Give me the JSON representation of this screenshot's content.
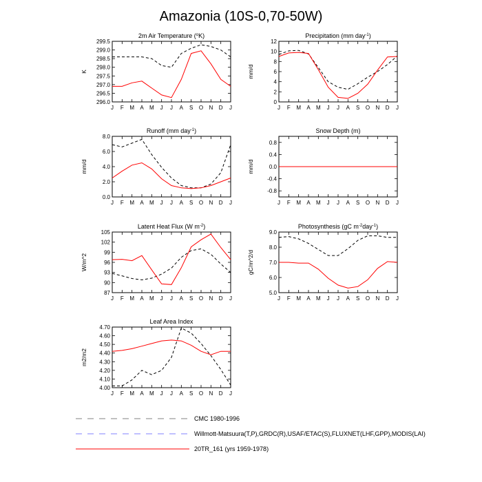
{
  "title": "Amazonia (10S-0,70-50W)",
  "months": [
    "J",
    "F",
    "M",
    "A",
    "M",
    "J",
    "J",
    "A",
    "S",
    "O",
    "N",
    "D",
    "J"
  ],
  "colors": {
    "model": "#ff0000",
    "obs": "#000000",
    "legend_obs": "#8080ff",
    "legend_cmc": "#808080"
  },
  "legend": [
    {
      "label": "CMC 1980-1996",
      "style": "dashed",
      "color": "#808080"
    },
    {
      "label": "Willmott-Matsuura(T,P),GRDC(R),USAF/ETAC(S),FLUXNET(LHF,GPP),MODIS(LAI)",
      "style": "dashed",
      "color": "#8080ff"
    },
    {
      "label": "20TR_161 (yrs 1959-1978)",
      "style": "solid",
      "color": "#ff0000"
    }
  ],
  "chart_data": [
    {
      "type": "line",
      "title_main": "2m Air Temperature (",
      "title_sup": "o",
      "title_end": "K)",
      "ylabel": "K",
      "ylim": [
        296.0,
        299.5
      ],
      "yticks": [
        "296.0",
        "296.5",
        "297.0",
        "297.5",
        "298.0",
        "298.5",
        "299.0",
        "299.5"
      ],
      "series": [
        {
          "name": "obs",
          "values": [
            298.6,
            298.6,
            298.6,
            298.6,
            298.5,
            298.1,
            298.0,
            298.8,
            299.1,
            299.3,
            299.2,
            299.0,
            298.6
          ]
        },
        {
          "name": "model",
          "values": [
            296.9,
            296.9,
            297.1,
            297.2,
            296.8,
            296.4,
            296.25,
            297.3,
            298.8,
            298.95,
            298.2,
            297.3,
            296.9
          ]
        }
      ]
    },
    {
      "type": "line",
      "title_main": "Precipitation (mm day",
      "title_sup": "-1",
      "title_end": ")",
      "ylabel": "mm/d",
      "ylim": [
        0,
        12
      ],
      "yticks": [
        "0",
        "2",
        "4",
        "6",
        "8",
        "10",
        "12"
      ],
      "series": [
        {
          "name": "obs",
          "values": [
            9.4,
            10.1,
            10.2,
            9.5,
            6.8,
            4.0,
            2.9,
            2.5,
            3.6,
            4.9,
            6.0,
            7.4,
            9.1
          ]
        },
        {
          "name": "model",
          "values": [
            9.0,
            9.7,
            9.8,
            9.6,
            6.4,
            2.9,
            0.9,
            0.7,
            1.7,
            3.5,
            6.3,
            8.9,
            9.0
          ]
        }
      ]
    },
    {
      "type": "line",
      "title_main": "Runoff (mm day",
      "title_sup": "-1",
      "title_end": ")",
      "ylabel": "mm/d",
      "ylim": [
        0,
        8
      ],
      "yticks": [
        "0.0",
        "2.0",
        "4.0",
        "6.0",
        "8.0"
      ],
      "series": [
        {
          "name": "obs",
          "values": [
            6.9,
            6.6,
            7.1,
            7.6,
            5.6,
            3.9,
            2.5,
            1.5,
            1.2,
            1.2,
            1.7,
            3.2,
            6.9
          ]
        },
        {
          "name": "model",
          "values": [
            2.5,
            3.4,
            4.2,
            4.5,
            3.7,
            2.4,
            1.5,
            1.2,
            1.1,
            1.2,
            1.5,
            2.0,
            2.5
          ]
        }
      ]
    },
    {
      "type": "line",
      "title_main": "Snow Depth (m)",
      "title_sup": "",
      "title_end": "",
      "ylabel": "mm/d",
      "ylim": [
        -1.0,
        1.0
      ],
      "yticks": [
        "-0.8",
        "-0.4",
        "0.0",
        "0.4",
        "0.8"
      ],
      "series": [
        {
          "name": "obs",
          "values": [
            0,
            0,
            0,
            0,
            0,
            0,
            0,
            0,
            0,
            0,
            0,
            0,
            0
          ]
        },
        {
          "name": "model",
          "values": [
            0,
            0,
            0,
            0,
            0,
            0,
            0,
            0,
            0,
            0,
            0,
            0,
            0
          ]
        }
      ]
    },
    {
      "type": "line",
      "title_main": "Latent Heat Flux (W m",
      "title_sup": "-2",
      "title_end": ")",
      "ylabel": "W/m^2",
      "ylim": [
        87,
        105
      ],
      "yticks": [
        "87",
        "90",
        "93",
        "96",
        "99",
        "102",
        "105"
      ],
      "series": [
        {
          "name": "obs",
          "values": [
            92.7,
            92.0,
            91.2,
            90.8,
            91.3,
            92.5,
            94.3,
            97.5,
            99.5,
            100.0,
            98.4,
            95.5,
            93.0
          ]
        },
        {
          "name": "model",
          "values": [
            96.8,
            96.9,
            96.5,
            98.0,
            93.8,
            89.6,
            89.4,
            94.4,
            100.6,
            102.7,
            104.4,
            100.4,
            96.8
          ]
        }
      ]
    },
    {
      "type": "line",
      "title_main": "Photosynthesis (gC m",
      "title_sup": "-2",
      "title_end": "day",
      "title_sup2": "-1",
      "title_end2": ")",
      "ylabel": "gC/m^2/d",
      "ylim": [
        5.0,
        9.0
      ],
      "yticks": [
        "5.0",
        "6.0",
        "7.0",
        "8.0",
        "9.0"
      ],
      "series": [
        {
          "name": "obs",
          "values": [
            8.65,
            8.7,
            8.55,
            8.25,
            7.85,
            7.45,
            7.45,
            7.9,
            8.45,
            8.75,
            8.75,
            8.65,
            8.65
          ]
        },
        {
          "name": "model",
          "values": [
            7.0,
            7.0,
            6.95,
            6.95,
            6.55,
            5.95,
            5.5,
            5.3,
            5.4,
            5.85,
            6.6,
            7.05,
            7.0
          ]
        }
      ]
    },
    {
      "type": "line",
      "title_main": "Leaf Area Index",
      "title_sup": "",
      "title_end": "",
      "ylabel": "m2/m2",
      "ylim": [
        4.0,
        4.7
      ],
      "yticks": [
        "4.00",
        "4.10",
        "4.20",
        "4.30",
        "4.40",
        "4.50",
        "4.60",
        "4.70"
      ],
      "series": [
        {
          "name": "obs",
          "values": [
            4.02,
            4.02,
            4.09,
            4.2,
            4.15,
            4.2,
            4.35,
            4.69,
            4.63,
            4.51,
            4.37,
            4.21,
            4.03
          ]
        },
        {
          "name": "model",
          "values": [
            4.42,
            4.43,
            4.45,
            4.48,
            4.51,
            4.54,
            4.55,
            4.54,
            4.49,
            4.42,
            4.38,
            4.42,
            4.42
          ]
        }
      ]
    }
  ]
}
